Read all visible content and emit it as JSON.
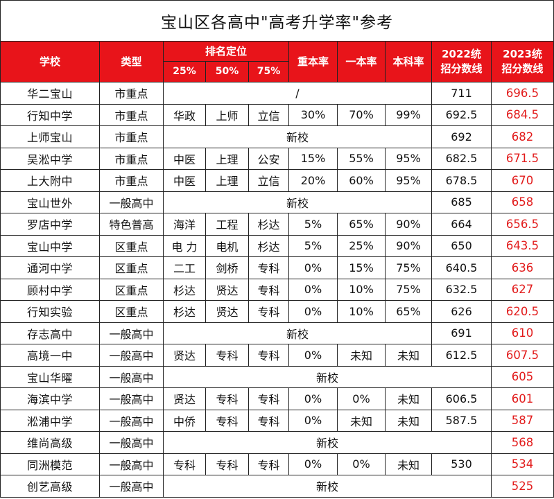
{
  "title": "宝山区各高中\"高考升学率\"参考",
  "headers": {
    "school": "学校",
    "type": "类型",
    "rank_group": "排名定位",
    "rank_25": "25%",
    "rank_50": "50%",
    "rank_75": "75%",
    "key_rate": "重本率",
    "tier1_rate": "一本率",
    "bachelor_rate": "本科率",
    "score_2022": "2022统招分数线",
    "score_2023": "2023统招分数线"
  },
  "rows": [
    {
      "school": "华二宝山",
      "type": "市重点",
      "merged": "/",
      "s22": "711",
      "s23": "696.5"
    },
    {
      "school": "行知中学",
      "type": "市重点",
      "p25": "华政",
      "p50": "上师",
      "p75": "立信",
      "key": "30%",
      "t1": "70%",
      "bach": "99%",
      "s22": "692.5",
      "s23": "684.5"
    },
    {
      "school": "上师宝山",
      "type": "市重点",
      "merged": "新校",
      "s22": "692",
      "s23": "682"
    },
    {
      "school": "吴淞中学",
      "type": "市重点",
      "p25": "中医",
      "p50": "上理",
      "p75": "公安",
      "key": "15%",
      "t1": "55%",
      "bach": "95%",
      "s22": "682.5",
      "s23": "671.5"
    },
    {
      "school": "上大附中",
      "type": "市重点",
      "p25": "中医",
      "p50": "上理",
      "p75": "立信",
      "key": "20%",
      "t1": "60%",
      "bach": "95%",
      "s22": "678.5",
      "s23": "670"
    },
    {
      "school": "宝山世外",
      "type": "一般高中",
      "merged": "新校",
      "s22": "685",
      "s23": "658"
    },
    {
      "school": "罗店中学",
      "type": "特色普高",
      "p25": "海洋",
      "p50": "工程",
      "p75": "杉达",
      "key": "5%",
      "t1": "65%",
      "bach": "90%",
      "s22": "664",
      "s23": "656.5"
    },
    {
      "school": "宝山中学",
      "type": "区重点",
      "p25": "电 力",
      "p50": "电机",
      "p75": "杉达",
      "key": "5%",
      "t1": "25%",
      "bach": "90%",
      "s22": "650",
      "s23": "643.5"
    },
    {
      "school": "通河中学",
      "type": "区重点",
      "p25": "二工",
      "p50": "剑桥",
      "p75": "专科",
      "key": "0%",
      "t1": "15%",
      "bach": "75%",
      "s22": "640.5",
      "s23": "636"
    },
    {
      "school": "顾村中学",
      "type": "区重点",
      "p25": "杉达",
      "p50": "贤达",
      "p75": "专科",
      "key": "0%",
      "t1": "10%",
      "bach": "75%",
      "s22": "632.5",
      "s23": "627"
    },
    {
      "school": "行知实验",
      "type": "区重点",
      "p25": "杉达",
      "p50": "贤达",
      "p75": "专科",
      "key": "0%",
      "t1": "10%",
      "bach": "65%",
      "s22": "626",
      "s23": "620.5"
    },
    {
      "school": "存志高中",
      "type": "一般高中",
      "merged": "新校",
      "s22": "691",
      "s23": "610"
    },
    {
      "school": "高境一中",
      "type": "一般高中",
      "p25": "贤达",
      "p50": "专科",
      "p75": "专科",
      "key": "0%",
      "t1": "未知",
      "bach": "未知",
      "s22": "612.5",
      "s23": "607.5"
    },
    {
      "school": "宝山华曜",
      "type": "一般高中",
      "merged_wide": "新校",
      "s23": "605"
    },
    {
      "school": "海滨中学",
      "type": "一般高中",
      "p25": "贤达",
      "p50": "专科",
      "p75": "专科",
      "key": "0%",
      "t1": "0%",
      "bach": "未知",
      "s22": "606.5",
      "s23": "601"
    },
    {
      "school": "淞浦中学",
      "type": "一般高中",
      "p25": "中侨",
      "p50": "专科",
      "p75": "专科",
      "key": "0%",
      "t1": "未知",
      "bach": "未知",
      "s22": "587.5",
      "s23": "587"
    },
    {
      "school": "维尚高级",
      "type": "一般高中",
      "merged_wide": "新校",
      "s23": "568"
    },
    {
      "school": "同洲模范",
      "type": "一般高中",
      "p25": "专科",
      "p50": "专科",
      "p75": "专科",
      "key": "0%",
      "t1": "0%",
      "bach": "未知",
      "s22": "530",
      "s23": "534"
    },
    {
      "school": "创艺高级",
      "type": "一般高中",
      "merged_wide": "新校",
      "s23": "525"
    }
  ]
}
